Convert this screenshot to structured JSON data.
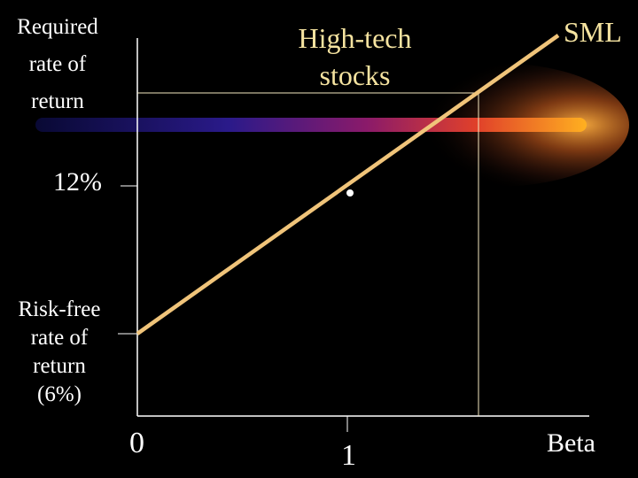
{
  "labels": {
    "y_axis": [
      "Required",
      "rate of",
      "return"
    ],
    "risk_free": [
      "Risk-free",
      "rate of",
      "return",
      "(6%)"
    ],
    "rate_12": "12%",
    "high_tech": [
      "High-tech",
      "stocks"
    ],
    "sml": "SML",
    "x_zero": "0",
    "x_one": "1",
    "x_axis": "Beta"
  },
  "colors": {
    "background": "#000000",
    "sml_line": "#f0c47a",
    "axis": "#ffffff",
    "guide_line": "#f5e8c0",
    "highlight_band": [
      "#1a1a7a",
      "#8a1a5a",
      "#e0402a",
      "#ffb020"
    ]
  },
  "chart_data": {
    "type": "line",
    "xlabel": "Beta",
    "ylabel": "Required rate of return",
    "x_ticks": [
      "0",
      "1"
    ],
    "risk_free_rate": 6,
    "market_return": 12,
    "sml": {
      "x": [
        0,
        1
      ],
      "y": [
        6,
        12
      ]
    },
    "points": [
      {
        "x": 1,
        "y": 12
      }
    ],
    "highlight": "High-tech stocks"
  }
}
